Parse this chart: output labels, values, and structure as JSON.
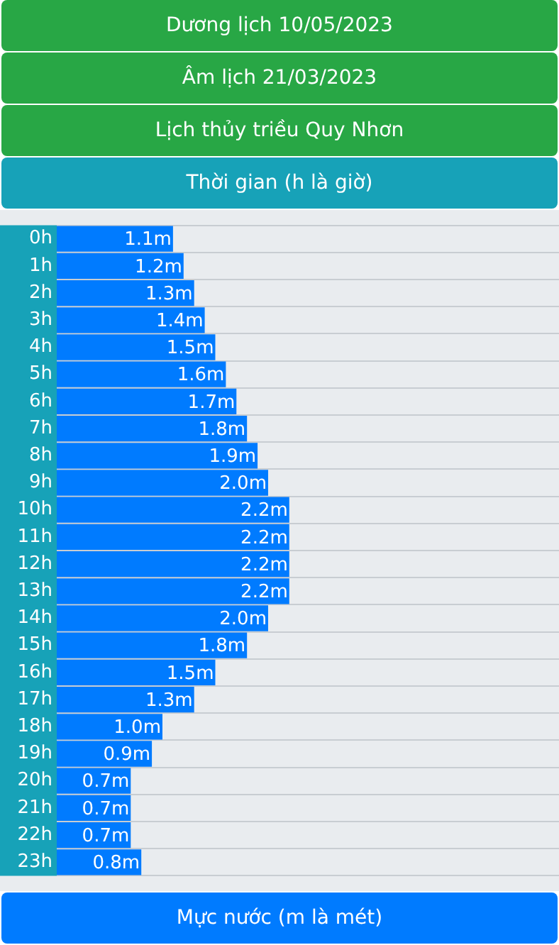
{
  "chart_data": {
    "type": "bar",
    "orientation": "horizontal",
    "title": "Dương lịch 10/05/2023",
    "subtitle": "Âm lịch 21/03/2023",
    "annotations": [
      "Lịch thủy triều Quy Nhơn"
    ],
    "ylabel": "Thời gian (h là giờ)",
    "xlabel": "Mực nước (m là mét)",
    "categories": [
      "0h",
      "1h",
      "2h",
      "3h",
      "4h",
      "5h",
      "6h",
      "7h",
      "8h",
      "9h",
      "10h",
      "11h",
      "12h",
      "13h",
      "14h",
      "15h",
      "16h",
      "17h",
      "18h",
      "19h",
      "20h",
      "21h",
      "22h",
      "23h"
    ],
    "values": [
      1.1,
      1.2,
      1.3,
      1.4,
      1.5,
      1.6,
      1.7,
      1.8,
      1.9,
      2.0,
      2.2,
      2.2,
      2.2,
      2.2,
      2.0,
      1.8,
      1.5,
      1.3,
      1.0,
      0.9,
      0.7,
      0.7,
      0.7,
      0.8
    ],
    "value_labels": [
      "1.1m",
      "1.2m",
      "1.3m",
      "1.4m",
      "1.5m",
      "1.6m",
      "1.7m",
      "1.8m",
      "1.9m",
      "2.0m",
      "2.2m",
      "2.2m",
      "2.2m",
      "2.2m",
      "2.0m",
      "1.8m",
      "1.5m",
      "1.3m",
      "1.0m",
      "0.9m",
      "0.7m",
      "0.7m",
      "0.7m",
      "0.8m"
    ],
    "color": "#007bff",
    "grid": true
  }
}
